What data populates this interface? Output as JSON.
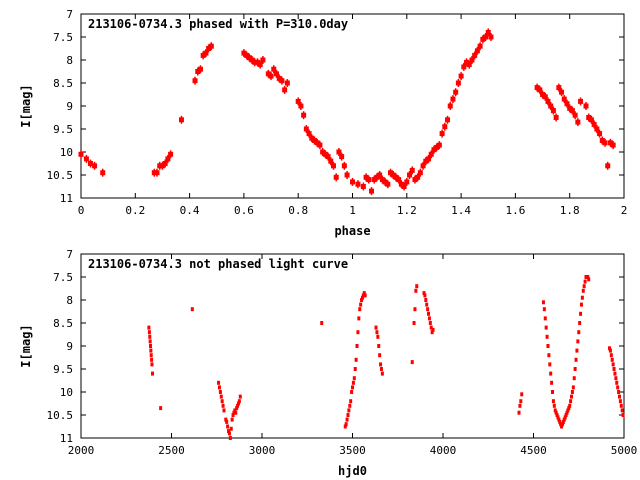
{
  "chart_data": [
    {
      "type": "scatter",
      "title": "213106-0734.3 phased with P=310.0day",
      "xlabel": "phase",
      "ylabel": "I[mag]",
      "xlim": [
        0,
        2
      ],
      "ylim": [
        11,
        7
      ],
      "y_reversed": true,
      "xticks": [
        0,
        0.2,
        0.4,
        0.6,
        0.8,
        1,
        1.2,
        1.4,
        1.6,
        1.8,
        2
      ],
      "xtick_labels": [
        "0",
        "0.2",
        "0.4",
        "0.6",
        "0.8",
        "1",
        "1.2",
        "1.4",
        "1.6",
        "1.8",
        "2"
      ],
      "yticks": [
        7,
        7.5,
        8,
        8.5,
        9,
        9.5,
        10,
        10.5,
        11
      ],
      "ytick_labels": [
        "7",
        "7.5",
        "8",
        "8.5",
        "9",
        "9.5",
        "10",
        "10.5",
        "11"
      ],
      "grid": false,
      "marker_color": "#ff0000",
      "series": [
        {
          "x": [
            0.0,
            0.02,
            0.035,
            0.05,
            0.08,
            0.27,
            0.28,
            0.29,
            0.3,
            0.31,
            0.32,
            0.33,
            0.37,
            0.42,
            0.43,
            0.44,
            0.45,
            0.46,
            0.47,
            0.48,
            0.6,
            0.61,
            0.62,
            0.63,
            0.64,
            0.65,
            0.66,
            0.67,
            0.69,
            0.7,
            0.71,
            0.72,
            0.73,
            0.74,
            0.75,
            0.76,
            0.8,
            0.81,
            0.82,
            0.83,
            0.84,
            0.85,
            0.86,
            0.87,
            0.88,
            0.89,
            0.9,
            0.91,
            0.92,
            0.93,
            0.94,
            0.95,
            0.96,
            0.97,
            0.98,
            1.0,
            1.02,
            1.04,
            1.05,
            1.06,
            1.07,
            1.08,
            1.09,
            1.1,
            1.11,
            1.12,
            1.13,
            1.14,
            1.15,
            1.16,
            1.17,
            1.18,
            1.19,
            1.2,
            1.21,
            1.22,
            1.23,
            1.24,
            1.25,
            1.26,
            1.27,
            1.28,
            1.29,
            1.3,
            1.31,
            1.32,
            1.33,
            1.34,
            1.35,
            1.36,
            1.37,
            1.38,
            1.39,
            1.4,
            1.41,
            1.42,
            1.43,
            1.44,
            1.45,
            1.46,
            1.47,
            1.48,
            1.49,
            1.5,
            1.51,
            1.68,
            1.69,
            1.7,
            1.71,
            1.72,
            1.73,
            1.74,
            1.75,
            1.76,
            1.77,
            1.78,
            1.79,
            1.8,
            1.81,
            1.82,
            1.83,
            1.84,
            1.86,
            1.87,
            1.88,
            1.89,
            1.9,
            1.91,
            1.92,
            1.93,
            1.94,
            1.95,
            1.96
          ],
          "y": [
            10.05,
            10.15,
            10.25,
            10.3,
            10.45,
            10.45,
            10.45,
            10.3,
            10.3,
            10.25,
            10.15,
            10.05,
            9.3,
            8.45,
            8.25,
            8.2,
            7.9,
            7.85,
            7.75,
            7.7,
            7.85,
            7.9,
            7.95,
            8.0,
            8.05,
            8.05,
            8.1,
            8.0,
            8.3,
            8.35,
            8.2,
            8.3,
            8.4,
            8.45,
            8.65,
            8.5,
            8.9,
            9.0,
            9.2,
            9.5,
            9.6,
            9.7,
            9.75,
            9.8,
            9.85,
            10.0,
            10.05,
            10.1,
            10.2,
            10.3,
            10.55,
            10.0,
            10.1,
            10.3,
            10.5,
            10.65,
            10.7,
            10.75,
            10.55,
            10.6,
            10.85,
            10.6,
            10.55,
            10.5,
            10.6,
            10.65,
            10.7,
            10.45,
            10.5,
            10.55,
            10.6,
            10.7,
            10.75,
            10.65,
            10.5,
            10.4,
            10.6,
            10.55,
            10.45,
            10.3,
            10.2,
            10.15,
            10.05,
            9.95,
            9.9,
            9.85,
            9.6,
            9.45,
            9.3,
            9.0,
            8.85,
            8.7,
            8.5,
            8.35,
            8.15,
            8.05,
            8.1,
            8.0,
            7.9,
            7.8,
            7.7,
            7.55,
            7.5,
            7.4,
            7.5,
            8.6,
            8.65,
            8.75,
            8.8,
            8.9,
            9.0,
            9.1,
            9.25,
            8.6,
            8.7,
            8.85,
            8.95,
            9.05,
            9.1,
            9.2,
            9.35,
            8.9,
            9.0,
            9.25,
            9.3,
            9.4,
            9.5,
            9.6,
            9.75,
            9.8,
            10.3,
            9.8,
            9.85
          ],
          "error_bar_y": 0.05
        }
      ]
    },
    {
      "type": "scatter",
      "title": "213106-0734.3 not phased light curve",
      "xlabel": "hjd0",
      "ylabel": "I[mag]",
      "xlim": [
        2000,
        5000
      ],
      "ylim": [
        11,
        7
      ],
      "y_reversed": true,
      "xticks": [
        2000,
        2500,
        3000,
        3500,
        4000,
        4500,
        5000
      ],
      "xtick_labels": [
        "2000",
        "2500",
        "3000",
        "3500",
        "4000",
        "4500",
        "5000"
      ],
      "yticks": [
        7,
        7.5,
        8,
        8.5,
        9,
        9.5,
        10,
        10.5,
        11
      ],
      "ytick_labels": [
        "7",
        "7.5",
        "8",
        "8.5",
        "9",
        "9.5",
        "10",
        "10.5",
        "11"
      ],
      "grid": false,
      "marker_color": "#ff0000",
      "series": [
        {
          "x": [
            2375,
            2378,
            2380,
            2382,
            2384,
            2386,
            2388,
            2390,
            2392,
            2395,
            2440,
            2615,
            2760,
            2765,
            2770,
            2775,
            2780,
            2785,
            2790,
            2800,
            2805,
            2810,
            2815,
            2820,
            2825,
            2830,
            2835,
            2840,
            2845,
            2850,
            2855,
            2860,
            2865,
            2870,
            2875,
            2880,
            3330,
            3460,
            3465,
            3470,
            3475,
            3480,
            3485,
            3490,
            3495,
            3500,
            3505,
            3510,
            3515,
            3520,
            3525,
            3530,
            3535,
            3540,
            3545,
            3550,
            3555,
            3560,
            3565,
            3570,
            3630,
            3635,
            3640,
            3645,
            3650,
            3655,
            3660,
            3665,
            3830,
            3840,
            3845,
            3850,
            3855,
            3895,
            3900,
            3905,
            3910,
            3915,
            3920,
            3925,
            3930,
            3935,
            3940,
            3945,
            4420,
            4425,
            4430,
            4435,
            4555,
            4560,
            4565,
            4570,
            4575,
            4580,
            4585,
            4590,
            4595,
            4600,
            4605,
            4610,
            4615,
            4620,
            4625,
            4630,
            4635,
            4640,
            4645,
            4650,
            4655,
            4660,
            4665,
            4670,
            4675,
            4680,
            4685,
            4690,
            4695,
            4700,
            4705,
            4710,
            4715,
            4720,
            4725,
            4730,
            4735,
            4740,
            4745,
            4750,
            4755,
            4760,
            4765,
            4770,
            4775,
            4780,
            4785,
            4790,
            4800,
            4805,
            4920,
            4925,
            4930,
            4935,
            4940,
            4945,
            4950,
            4955,
            4960,
            4965,
            4970,
            4975,
            4980,
            4985,
            4990,
            4995
          ],
          "y": [
            8.6,
            8.7,
            8.8,
            8.9,
            9.0,
            9.1,
            9.2,
            9.3,
            9.4,
            9.6,
            10.35,
            8.2,
            9.8,
            9.9,
            10.0,
            10.1,
            10.2,
            10.3,
            10.4,
            10.6,
            10.65,
            10.75,
            10.85,
            10.9,
            11.0,
            10.8,
            10.6,
            10.5,
            10.45,
            10.4,
            10.45,
            10.35,
            10.3,
            10.25,
            10.2,
            10.1,
            8.5,
            10.75,
            10.7,
            10.6,
            10.5,
            10.4,
            10.3,
            10.2,
            10.0,
            9.9,
            9.8,
            9.7,
            9.5,
            9.3,
            9.0,
            8.7,
            8.4,
            8.2,
            8.1,
            8.0,
            7.95,
            7.9,
            7.85,
            7.9,
            8.6,
            8.7,
            8.8,
            9.0,
            9.2,
            9.4,
            9.5,
            9.6,
            9.35,
            8.5,
            8.2,
            7.8,
            7.7,
            7.85,
            7.9,
            8.0,
            8.1,
            8.2,
            8.3,
            8.4,
            8.5,
            8.6,
            8.7,
            8.65,
            10.45,
            10.3,
            10.2,
            10.05,
            8.05,
            8.2,
            8.4,
            8.6,
            8.8,
            9.0,
            9.2,
            9.4,
            9.6,
            9.8,
            10.0,
            10.2,
            10.3,
            10.4,
            10.45,
            10.5,
            10.55,
            10.6,
            10.65,
            10.7,
            10.75,
            10.7,
            10.65,
            10.6,
            10.55,
            10.5,
            10.45,
            10.4,
            10.35,
            10.3,
            10.2,
            10.1,
            10.0,
            9.9,
            9.7,
            9.5,
            9.3,
            9.1,
            8.9,
            8.7,
            8.5,
            8.3,
            8.1,
            7.95,
            7.8,
            7.7,
            7.6,
            7.5,
            7.5,
            7.55,
            9.05,
            9.1,
            9.2,
            9.3,
            9.4,
            9.5,
            9.6,
            9.7,
            9.8,
            9.9,
            10.0,
            10.1,
            10.2,
            10.3,
            10.4,
            10.5
          ]
        }
      ]
    }
  ]
}
